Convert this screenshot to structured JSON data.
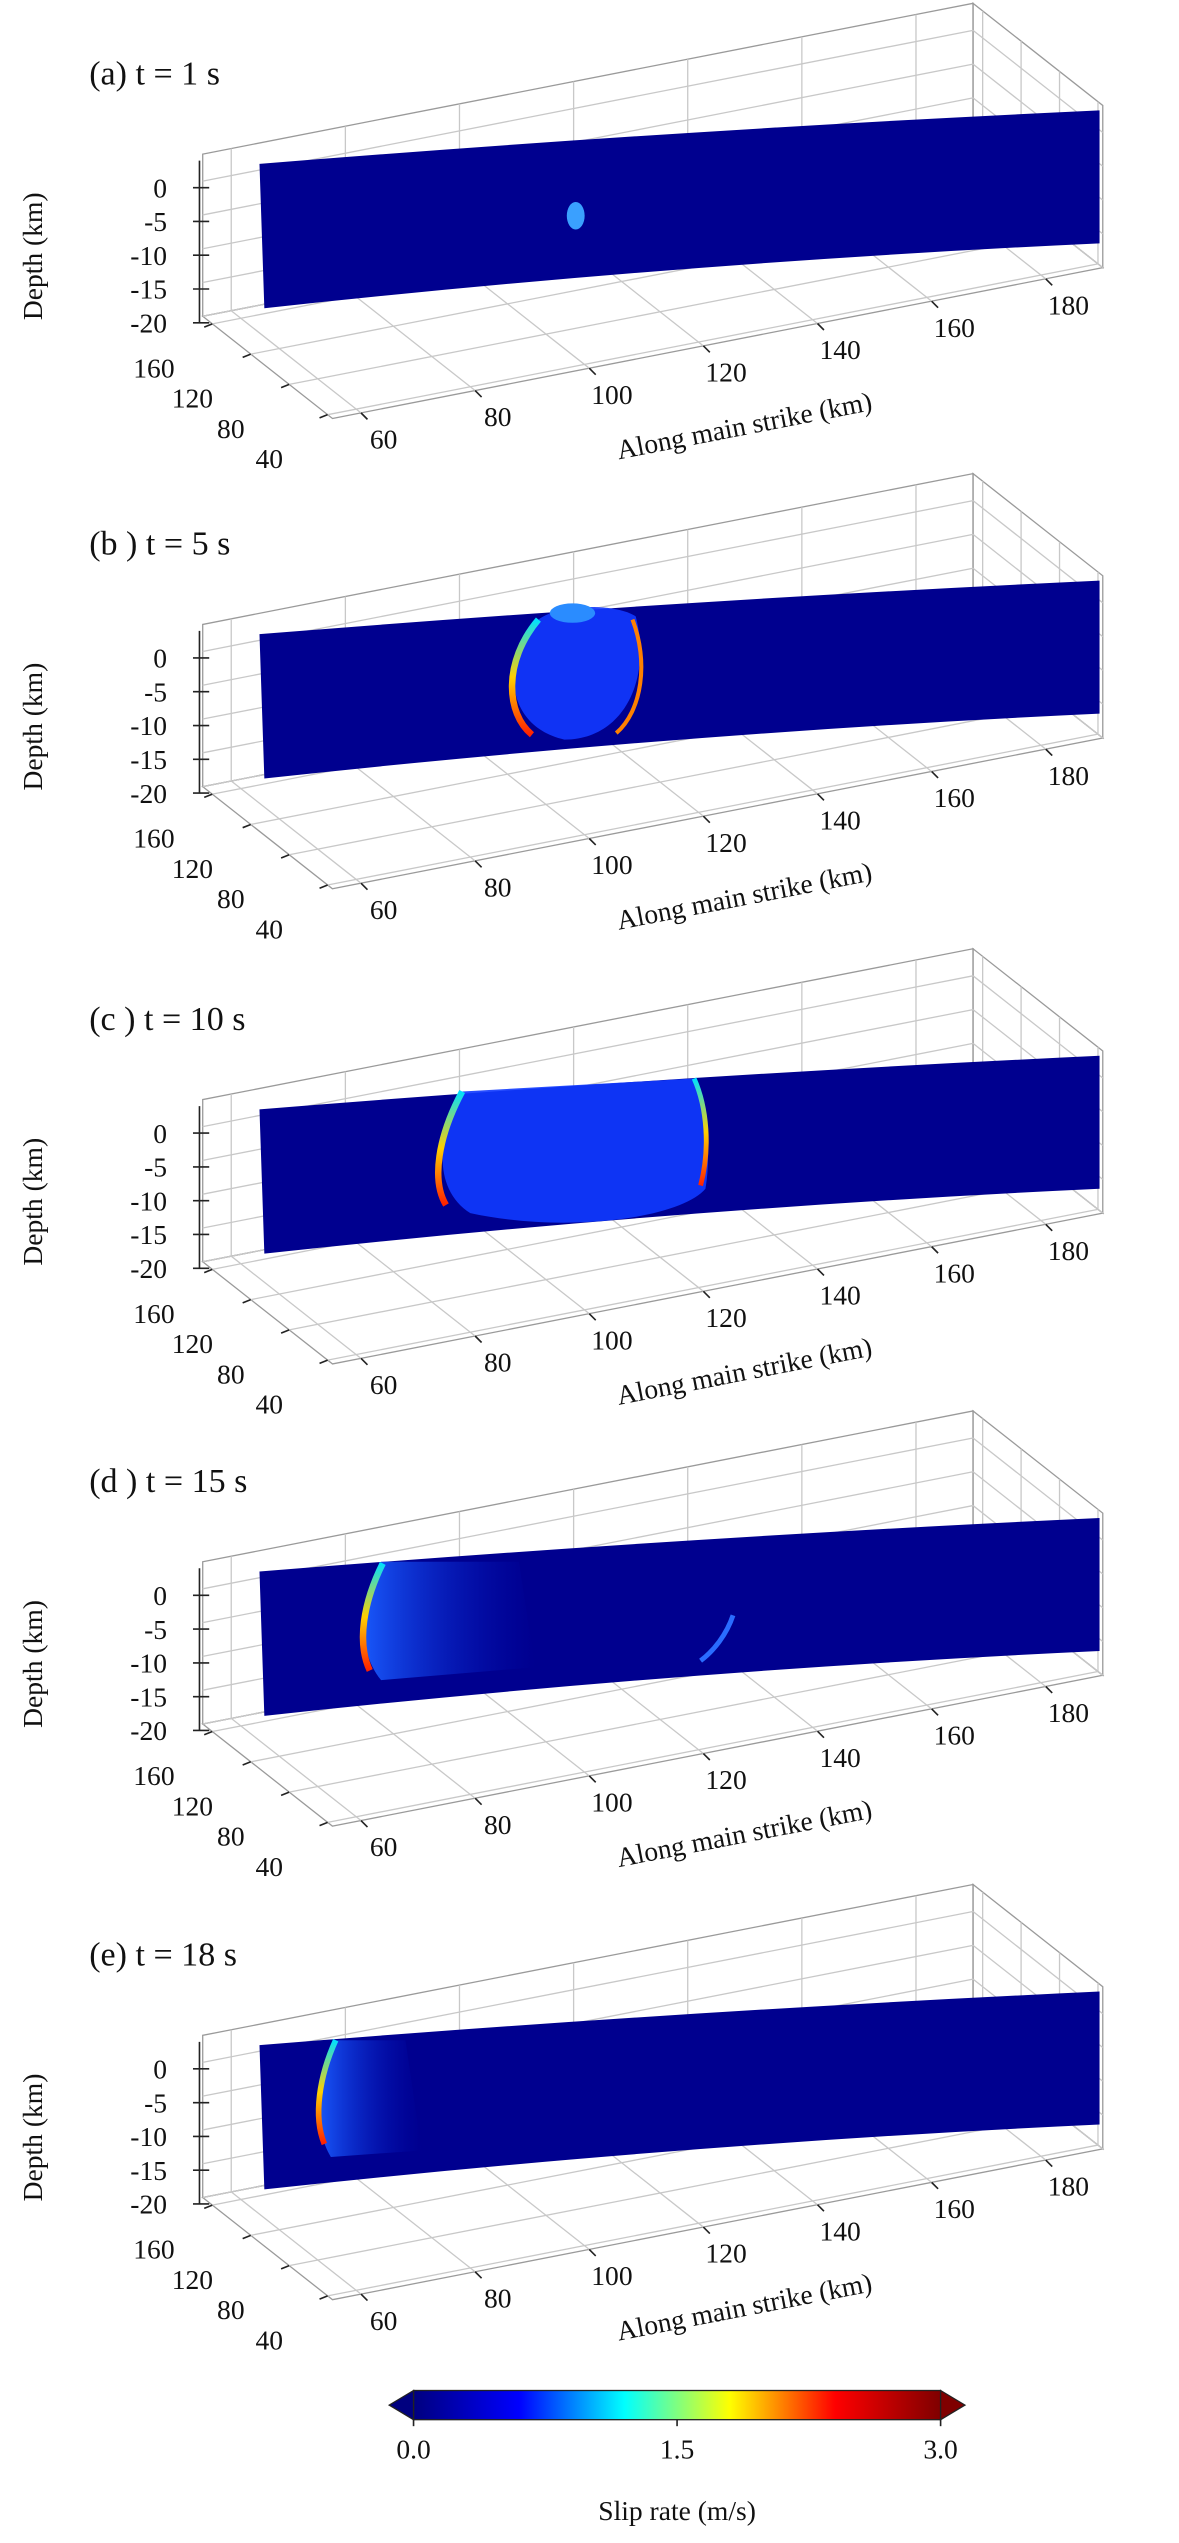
{
  "chart_data": [
    {
      "type": "surface3d",
      "title": "(a) t = 1 s",
      "xlabel": "Along main strike (km)",
      "zlabel": "Depth (km)",
      "xlim": [
        55,
        190
      ],
      "xticks": [
        60,
        80,
        100,
        120,
        140,
        160,
        180
      ],
      "ylim": [
        35,
        170
      ],
      "yticks": [
        40,
        80,
        120,
        160
      ],
      "zlim": [
        -20,
        4
      ],
      "zticks": [
        0,
        -5,
        -10,
        -15,
        -20
      ],
      "surface_color": "#00008f"
    },
    {
      "type": "surface3d",
      "title": "(b ) t = 5 s",
      "xlabel": "Along main strike (km)",
      "zlabel": "Depth (km)",
      "xlim": [
        55,
        190
      ],
      "xticks": [
        60,
        80,
        100,
        120,
        140,
        160,
        180
      ],
      "ylim": [
        35,
        170
      ],
      "yticks": [
        40,
        80,
        120,
        160
      ],
      "zlim": [
        -20,
        4
      ],
      "zticks": [
        0,
        -5,
        -10,
        -15,
        -20
      ],
      "surface_color": "#00008f"
    },
    {
      "type": "surface3d",
      "title": "(c ) t = 10 s",
      "xlabel": "Along main strike (km)",
      "zlabel": "Depth (km)",
      "xlim": [
        55,
        190
      ],
      "xticks": [
        60,
        80,
        100,
        120,
        140,
        160,
        180
      ],
      "ylim": [
        35,
        170
      ],
      "yticks": [
        40,
        80,
        120,
        160
      ],
      "zlim": [
        -20,
        4
      ],
      "zticks": [
        0,
        -5,
        -10,
        -15,
        -20
      ],
      "surface_color": "#00008f"
    },
    {
      "type": "surface3d",
      "title": "(d ) t = 15 s",
      "xlabel": "Along main strike (km)",
      "zlabel": "Depth (km)",
      "xlim": [
        55,
        190
      ],
      "xticks": [
        60,
        80,
        100,
        120,
        140,
        160,
        180
      ],
      "ylim": [
        35,
        170
      ],
      "yticks": [
        40,
        80,
        120,
        160
      ],
      "zlim": [
        -20,
        4
      ],
      "zticks": [
        0,
        -5,
        -10,
        -15,
        -20
      ],
      "surface_color": "#00008f"
    },
    {
      "type": "surface3d",
      "title": "(e)  t = 18 s",
      "xlabel": "Along main strike (km)",
      "zlabel": "Depth (km)",
      "xlim": [
        55,
        190
      ],
      "xticks": [
        60,
        80,
        100,
        120,
        140,
        160,
        180
      ],
      "ylim": [
        35,
        170
      ],
      "yticks": [
        40,
        80,
        120,
        160
      ],
      "zlim": [
        -20,
        4
      ],
      "zticks": [
        0,
        -5,
        -10,
        -15,
        -20
      ],
      "surface_color": "#00008f"
    },
    {
      "type": "colorbar",
      "label": "Slip rate (m/s)",
      "lim": [
        0,
        3
      ],
      "ticks": [
        {
          "value": 0,
          "label": "0.0"
        },
        {
          "value": 1.5,
          "label": "1.5"
        },
        {
          "value": 3,
          "label": "3.0"
        }
      ],
      "colors": [
        "#00007f",
        "#0000ff",
        "#00ffff",
        "#ffff00",
        "#ff0000",
        "#7f0000"
      ],
      "extend": "both"
    }
  ]
}
